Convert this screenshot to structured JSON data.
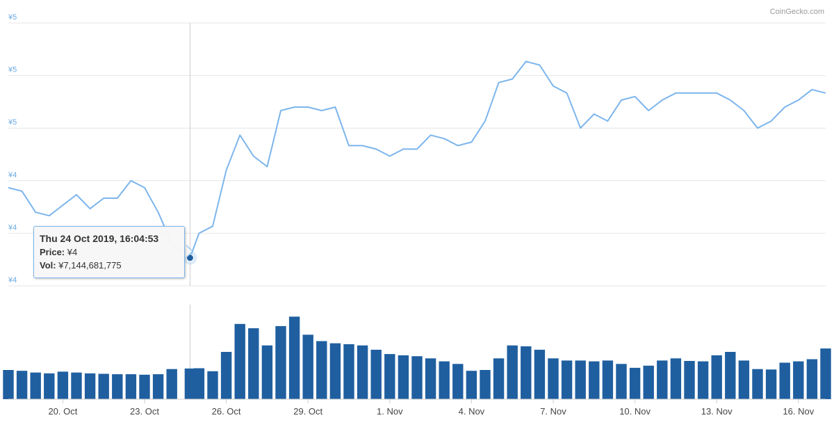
{
  "credit": "CoinGecko.com",
  "tooltip": {
    "title": "Thu 24 Oct 2019, 16:04:53",
    "price_label": "Price:",
    "price_value": "¥4",
    "vol_label": "Vol:",
    "vol_value": "¥7,144,681,775"
  },
  "colors": {
    "price_line": "#7cb5ec",
    "volume_bar": "#1f5fa0",
    "marker": "#1f5fa0",
    "gridline": "#e6e6e6",
    "crosshair": "#cccccc"
  },
  "chart_data": [
    {
      "type": "line",
      "series": [
        {
          "name": "Price",
          "x": [
            "2019-10-18",
            "2019-10-18 12:00",
            "2019-10-19",
            "2019-10-19 12:00",
            "2019-10-20",
            "2019-10-20 12:00",
            "2019-10-21",
            "2019-10-21 12:00",
            "2019-10-22",
            "2019-10-22 12:00",
            "2019-10-23",
            "2019-10-23 12:00",
            "2019-10-24",
            "2019-10-24 16:04",
            "2019-10-25",
            "2019-10-25 12:00",
            "2019-10-26",
            "2019-10-26 12:00",
            "2019-10-27",
            "2019-10-27 12:00",
            "2019-10-28",
            "2019-10-28 12:00",
            "2019-10-29",
            "2019-10-29 12:00",
            "2019-10-30",
            "2019-10-30 12:00",
            "2019-10-31",
            "2019-10-31 12:00",
            "2019-11-01",
            "2019-11-01 12:00",
            "2019-11-02",
            "2019-11-02 12:00",
            "2019-11-03",
            "2019-11-03 12:00",
            "2019-11-04",
            "2019-11-04 12:00",
            "2019-11-05",
            "2019-11-05 12:00",
            "2019-11-06",
            "2019-11-06 12:00",
            "2019-11-07",
            "2019-11-07 12:00",
            "2019-11-08",
            "2019-11-08 12:00",
            "2019-11-09",
            "2019-11-09 12:00",
            "2019-11-10",
            "2019-11-10 12:00",
            "2019-11-11",
            "2019-11-11 12:00",
            "2019-11-12",
            "2019-11-12 12:00",
            "2019-11-13",
            "2019-11-13 12:00",
            "2019-11-14",
            "2019-11-14 12:00",
            "2019-11-15",
            "2019-11-15 12:00",
            "2019-11-16",
            "2019-11-16 12:00",
            "2019-11-17"
          ],
          "values": [
            4.43,
            4.42,
            4.36,
            4.35,
            4.38,
            4.41,
            4.37,
            4.4,
            4.4,
            4.45,
            4.43,
            4.36,
            4.27,
            4.23,
            4.3,
            4.32,
            4.48,
            4.58,
            4.52,
            4.49,
            4.65,
            4.66,
            4.66,
            4.65,
            4.66,
            4.55,
            4.55,
            4.54,
            4.52,
            4.54,
            4.54,
            4.58,
            4.57,
            4.55,
            4.56,
            4.62,
            4.73,
            4.74,
            4.79,
            4.78,
            4.72,
            4.7,
            4.6,
            4.64,
            4.62,
            4.68,
            4.69,
            4.65,
            4.68,
            4.7,
            4.7,
            4.7,
            4.7,
            4.68,
            4.65,
            4.6,
            4.62,
            4.66,
            4.68,
            4.71,
            4.7
          ]
        }
      ],
      "xlabel": "",
      "ylabel": "",
      "y_tick_labels": [
        "¥5",
        "¥5",
        "¥5",
        "¥4",
        "¥4",
        "¥4"
      ],
      "x_tick_labels": [
        "20. Oct",
        "23. Oct",
        "26. Oct",
        "29. Oct",
        "1. Nov",
        "4. Nov",
        "7. Nov",
        "10. Nov",
        "13. Nov",
        "16. Nov"
      ],
      "ylim": [
        4.15,
        4.9
      ],
      "grid": true,
      "legend": "none"
    },
    {
      "type": "bar",
      "series": [
        {
          "name": "Vol",
          "x": [
            "2019-10-18",
            "2019-10-18 12:00",
            "2019-10-19",
            "2019-10-19 12:00",
            "2019-10-20",
            "2019-10-20 12:00",
            "2019-10-21",
            "2019-10-21 12:00",
            "2019-10-22",
            "2019-10-22 12:00",
            "2019-10-23",
            "2019-10-23 12:00",
            "2019-10-24",
            "2019-10-24 16:04",
            "2019-10-25",
            "2019-10-25 12:00",
            "2019-10-26",
            "2019-10-26 12:00",
            "2019-10-27",
            "2019-10-27 12:00",
            "2019-10-28",
            "2019-10-28 12:00",
            "2019-10-29",
            "2019-10-29 12:00",
            "2019-10-30",
            "2019-10-30 12:00",
            "2019-10-31",
            "2019-10-31 12:00",
            "2019-11-01",
            "2019-11-01 12:00",
            "2019-11-02",
            "2019-11-02 12:00",
            "2019-11-03",
            "2019-11-03 12:00",
            "2019-11-04",
            "2019-11-04 12:00",
            "2019-11-05",
            "2019-11-05 12:00",
            "2019-11-06",
            "2019-11-06 12:00",
            "2019-11-07",
            "2019-11-07 12:00",
            "2019-11-08",
            "2019-11-08 12:00",
            "2019-11-09",
            "2019-11-09 12:00",
            "2019-11-10",
            "2019-11-10 12:00",
            "2019-11-11",
            "2019-11-11 12:00",
            "2019-11-12",
            "2019-11-12 12:00",
            "2019-11-13",
            "2019-11-13 12:00",
            "2019-11-14",
            "2019-11-14 12:00",
            "2019-11-15",
            "2019-11-15 12:00",
            "2019-11-16",
            "2019-11-16 12:00",
            "2019-11-17"
          ],
          "values": [
            6.8,
            6.6,
            6.2,
            6.0,
            6.4,
            6.2,
            6.0,
            5.9,
            5.8,
            5.8,
            5.7,
            5.8,
            7.0,
            7.14,
            7.2,
            6.5,
            11.0,
            17.5,
            16.5,
            12.5,
            17.0,
            19.2,
            15.0,
            13.5,
            13.0,
            12.8,
            12.5,
            11.5,
            10.5,
            10.2,
            10.0,
            9.5,
            8.8,
            8.2,
            6.6,
            6.8,
            9.5,
            12.5,
            12.3,
            11.5,
            9.5,
            9.0,
            9.0,
            8.8,
            9.0,
            8.2,
            7.3,
            7.8,
            9.0,
            9.5,
            8.9,
            8.8,
            10.2,
            11.0,
            9.0,
            7.0,
            6.9,
            8.5,
            8.8,
            9.3,
            11.8
          ]
        }
      ],
      "xlabel": "",
      "ylabel": "",
      "ylim": [
        0,
        22
      ],
      "grid": false
    }
  ]
}
